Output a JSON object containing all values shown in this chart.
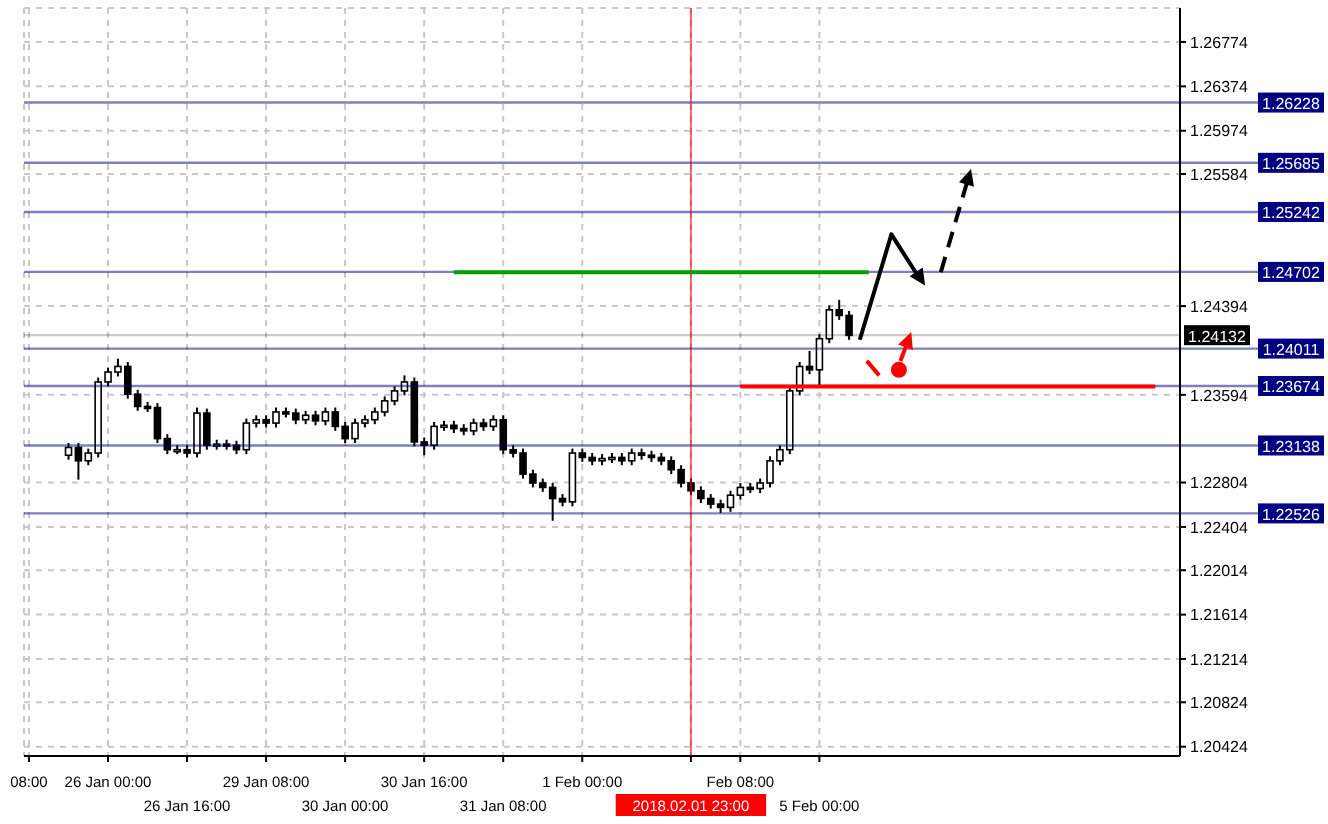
{
  "chart_data": {
    "type": "candlestick",
    "categories": [
      "08:00",
      null,
      null,
      null,
      null,
      null,
      null,
      null,
      "26 Jan 00:00",
      null,
      null,
      null,
      null,
      null,
      null,
      null,
      "26 Jan 16:00",
      null,
      null,
      null,
      null,
      null,
      null,
      null,
      "29 Jan 08:00",
      null,
      null,
      null,
      null,
      null,
      null,
      null,
      "30 Jan 00:00",
      null,
      null,
      null,
      null,
      null,
      null,
      null,
      "30 Jan 16:00",
      null,
      null,
      null,
      null,
      null,
      null,
      null,
      "31 Jan 08:00",
      null,
      null,
      null,
      null,
      null,
      null,
      null,
      "1 Feb 00:00",
      null,
      null,
      null,
      null,
      null,
      null,
      null,
      null,
      null,
      null,
      "2018.02.01 23:00",
      null,
      null,
      null,
      null,
      "Feb 08:00",
      null,
      null,
      null,
      null,
      null,
      null,
      null,
      "5 Feb 00:00",
      null,
      null,
      null,
      null,
      null,
      null,
      null,
      null,
      null,
      null,
      null,
      null,
      null,
      null,
      null,
      null,
      null,
      null,
      null,
      null,
      null,
      null,
      null,
      null,
      null,
      null,
      null,
      null,
      null,
      null,
      null,
      null,
      null,
      null,
      null,
      null
    ],
    "ohlc": [
      null,
      null,
      null,
      null,
      [
        1.2305,
        1.2316,
        1.2301,
        1.2312
      ],
      [
        1.2312,
        1.2316,
        1.2283,
        1.23
      ],
      [
        1.23,
        1.2311,
        1.2296,
        1.2307
      ],
      [
        1.2307,
        1.2375,
        1.2303,
        1.2371
      ],
      [
        1.2371,
        1.2384,
        1.2367,
        1.238
      ],
      [
        1.238,
        1.2392,
        1.2376,
        1.2385
      ],
      [
        1.2385,
        1.2389,
        1.2356,
        1.236
      ],
      [
        1.236,
        1.2364,
        1.2345,
        1.2349
      ],
      [
        1.2349,
        1.2353,
        1.2344,
        1.2348
      ],
      [
        1.2348,
        1.2352,
        1.2316,
        1.232
      ],
      [
        1.232,
        1.2324,
        1.2306,
        1.231
      ],
      [
        1.231,
        1.2314,
        1.2306,
        1.231
      ],
      [
        1.231,
        1.2314,
        1.2303,
        1.2307
      ],
      [
        1.2307,
        1.2348,
        1.2303,
        1.2343
      ],
      [
        1.2343,
        1.2347,
        1.231,
        1.2314
      ],
      [
        1.2314,
        1.2319,
        1.231,
        1.2315
      ],
      [
        1.2315,
        1.2319,
        1.231,
        1.2314
      ],
      [
        1.2314,
        1.2318,
        1.2306,
        1.231
      ],
      [
        1.231,
        1.2338,
        1.2306,
        1.2334
      ],
      [
        1.2334,
        1.2341,
        1.233,
        1.2337
      ],
      [
        1.2337,
        1.2341,
        1.233,
        1.2334
      ],
      [
        1.2334,
        1.2348,
        1.233,
        1.2344
      ],
      [
        1.2344,
        1.2348,
        1.2339,
        1.2343
      ],
      [
        1.2343,
        1.2347,
        1.2333,
        1.2337
      ],
      [
        1.2337,
        1.2345,
        1.2333,
        1.2341
      ],
      [
        1.2341,
        1.2345,
        1.2332,
        1.2336
      ],
      [
        1.2336,
        1.2348,
        1.2332,
        1.2344
      ],
      [
        1.2344,
        1.2348,
        1.2327,
        1.2331
      ],
      [
        1.2331,
        1.2335,
        1.2316,
        1.232
      ],
      [
        1.232,
        1.2338,
        1.2316,
        1.2334
      ],
      [
        1.2334,
        1.2341,
        1.233,
        1.2337
      ],
      [
        1.2337,
        1.2348,
        1.2333,
        1.2344
      ],
      [
        1.2344,
        1.2358,
        1.234,
        1.2354
      ],
      [
        1.2354,
        1.2367,
        1.235,
        1.2363
      ],
      [
        1.2363,
        1.2377,
        1.2359,
        1.2371
      ],
      [
        1.2371,
        1.2375,
        1.2313,
        1.2317
      ],
      [
        1.2317,
        1.2321,
        1.2305,
        1.2314
      ],
      [
        1.2314,
        1.2335,
        1.231,
        1.2331
      ],
      [
        1.2331,
        1.2336,
        1.2327,
        1.2332
      ],
      [
        1.2332,
        1.2336,
        1.2325,
        1.2329
      ],
      [
        1.2329,
        1.2333,
        1.2323,
        1.2327
      ],
      [
        1.2327,
        1.2338,
        1.2323,
        1.2334
      ],
      [
        1.2334,
        1.2338,
        1.2327,
        1.2331
      ],
      [
        1.2331,
        1.2341,
        1.2327,
        1.2337
      ],
      [
        1.2337,
        1.2341,
        1.2306,
        1.231
      ],
      [
        1.231,
        1.2314,
        1.2303,
        1.2307
      ],
      [
        1.2307,
        1.2311,
        1.2284,
        1.2288
      ],
      [
        1.2288,
        1.2292,
        1.2276,
        1.228
      ],
      [
        1.228,
        1.2284,
        1.2272,
        1.2276
      ],
      [
        1.2276,
        1.228,
        1.2246,
        1.2266
      ],
      [
        1.2266,
        1.227,
        1.2259,
        1.2263
      ],
      [
        1.2263,
        1.2311,
        1.2259,
        1.2307
      ],
      [
        1.2307,
        1.2311,
        1.2299,
        1.2303
      ],
      [
        1.2303,
        1.2307,
        1.2296,
        1.23
      ],
      [
        1.23,
        1.2306,
        1.2296,
        1.2302
      ],
      [
        1.2302,
        1.2307,
        1.2298,
        1.2303
      ],
      [
        1.2303,
        1.2307,
        1.2296,
        1.23
      ],
      [
        1.23,
        1.2311,
        1.2296,
        1.2307
      ],
      [
        1.2307,
        1.2311,
        1.2301,
        1.2305
      ],
      [
        1.2305,
        1.2309,
        1.2299,
        1.2303
      ],
      [
        1.2303,
        1.2307,
        1.2296,
        1.23
      ],
      [
        1.23,
        1.2304,
        1.2288,
        1.2292
      ],
      [
        1.2292,
        1.2296,
        1.2276,
        1.228
      ],
      [
        1.228,
        1.2284,
        1.2269,
        1.2273
      ],
      [
        1.2273,
        1.2277,
        1.2262,
        1.2266
      ],
      [
        1.2266,
        1.227,
        1.2257,
        1.2261
      ],
      [
        1.2261,
        1.2265,
        1.2253,
        1.2258
      ],
      [
        1.2258,
        1.2273,
        1.2254,
        1.2269
      ],
      [
        1.2269,
        1.228,
        1.2265,
        1.2276
      ],
      [
        1.2276,
        1.228,
        1.2271,
        1.2275
      ],
      [
        1.2275,
        1.2284,
        1.2271,
        1.228
      ],
      [
        1.228,
        1.2304,
        1.2276,
        1.23
      ],
      [
        1.23,
        1.2314,
        1.2296,
        1.231
      ],
      [
        1.231,
        1.2367,
        1.2306,
        1.2363
      ],
      [
        1.2363,
        1.2389,
        1.2359,
        1.2385
      ],
      [
        1.2385,
        1.2399,
        1.2378,
        1.2382
      ],
      [
        1.2382,
        1.2414,
        1.2368,
        1.241
      ],
      [
        1.241,
        1.244,
        1.2406,
        1.2436
      ],
      [
        1.2436,
        1.2445,
        1.2427,
        1.2431
      ],
      [
        1.2431,
        1.2435,
        1.2409,
        1.2413
      ],
      null,
      null,
      null,
      null,
      null,
      null,
      null,
      null,
      null,
      null,
      null,
      null,
      null,
      null,
      null,
      null,
      null,
      null,
      null,
      null,
      null,
      null,
      null,
      null,
      null,
      null,
      null,
      null,
      null,
      null,
      null,
      null,
      null
    ],
    "series": [
      {
        "type": "line",
        "color": "#00a000",
        "values": [
          null,
          null,
          null,
          null,
          null,
          null,
          null,
          null,
          null,
          null,
          null,
          null,
          null,
          null,
          null,
          null,
          null,
          null,
          null,
          null,
          null,
          null,
          null,
          null,
          null,
          null,
          null,
          null,
          null,
          null,
          null,
          null,
          null,
          null,
          null,
          null,
          null,
          null,
          null,
          null,
          null,
          null,
          null,
          1.247,
          null,
          null,
          null,
          null,
          null,
          null,
          null,
          null,
          null,
          null,
          null,
          null,
          null,
          null,
          null,
          null,
          null,
          null,
          null,
          null,
          null,
          null,
          null,
          null,
          null,
          null,
          null,
          null,
          null,
          null,
          null,
          null,
          null,
          null,
          null,
          null,
          null,
          null,
          null,
          null,
          null,
          1.247,
          null,
          null,
          null,
          null,
          null,
          null,
          null,
          null,
          null,
          null,
          null,
          null,
          null,
          null,
          null,
          null,
          null,
          null,
          null,
          null,
          null,
          null,
          null,
          null,
          null,
          null,
          null,
          null,
          null,
          null,
          null
        ]
      },
      {
        "type": "line",
        "color": "#ff0000",
        "values": [
          null,
          null,
          null,
          null,
          null,
          null,
          null,
          null,
          null,
          null,
          null,
          null,
          null,
          null,
          null,
          null,
          null,
          null,
          null,
          null,
          null,
          null,
          null,
          null,
          null,
          null,
          null,
          null,
          null,
          null,
          null,
          null,
          null,
          null,
          null,
          null,
          null,
          null,
          null,
          null,
          null,
          null,
          null,
          null,
          null,
          null,
          null,
          null,
          null,
          null,
          null,
          null,
          null,
          null,
          null,
          null,
          null,
          null,
          null,
          null,
          null,
          null,
          null,
          null,
          null,
          null,
          null,
          null,
          null,
          null,
          null,
          null,
          1.2367,
          null,
          null,
          null,
          null,
          null,
          null,
          null,
          null,
          null,
          null,
          null,
          null,
          null,
          null,
          null,
          null,
          null,
          null,
          null,
          null,
          null,
          null,
          null,
          null,
          null,
          null,
          null,
          null,
          null,
          null,
          null,
          null,
          null,
          null,
          null,
          null,
          null,
          null,
          null,
          null,
          null,
          1.2367,
          null,
          null
        ]
      }
    ],
    "ref_lines": [
      {
        "axis": "y",
        "value": 1.26228,
        "label": "1.26228",
        "color": "#000080"
      },
      {
        "axis": "y",
        "value": 1.25685,
        "label": "1.25685",
        "color": "#000080"
      },
      {
        "axis": "y",
        "value": 1.25242,
        "label": "1.25242",
        "color": "#000080"
      },
      {
        "axis": "y",
        "value": 1.24702,
        "label": "1.24702",
        "color": "#000080"
      },
      {
        "axis": "y",
        "value": 1.24011,
        "label": "1.24011",
        "color": "#000080"
      },
      {
        "axis": "y",
        "value": 1.24132,
        "label": "1.24132",
        "color": "#000000"
      },
      {
        "axis": "y",
        "value": 1.23674,
        "label": "1.23674",
        "color": "#000080"
      },
      {
        "axis": "y",
        "value": 1.23138,
        "label": "1.23138",
        "color": "#000080"
      },
      {
        "axis": "y",
        "value": 1.22526,
        "label": "1.22526",
        "color": "#000080"
      },
      {
        "axis": "x",
        "value": "2018.02.01 23:00",
        "color": "#ff0000"
      }
    ],
    "ylim": [
      1.2034,
      1.2708
    ],
    "yticks": [
      1.20424,
      1.20824,
      1.21214,
      1.21614,
      1.22014,
      1.22404,
      1.22804,
      1.23594,
      1.24394,
      1.25584,
      1.25974,
      1.26374,
      1.26774
    ],
    "grid": true
  }
}
